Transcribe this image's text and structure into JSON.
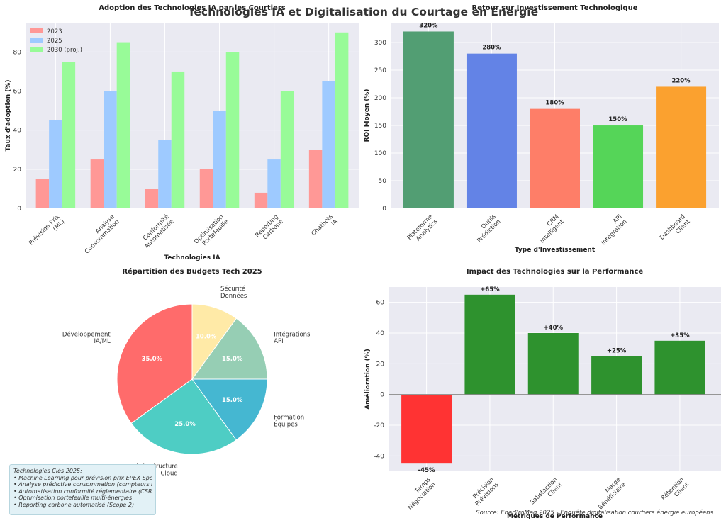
{
  "figure": {
    "title": "Technologies IA et Digitalisation du Courtage en Énergie",
    "source": "Source: EnerProMag 2025 - Enquête digitalisation courtiers énergie européens"
  },
  "notes": {
    "heading": "Technologies Clés 2025:",
    "items": [
      "• Machine Learning pour prévision prix EPEX Spot",
      "• Analyse prédictive consommation (compteurs Linky)",
      "• Automatisation conformité réglementaire (CSRD, EED)",
      "• Optimisation portefeuille multi-énergies",
      "• Reporting carbone automatisé (Scope 2)"
    ]
  },
  "chart_data": [
    {
      "type": "bar",
      "title": "Adoption des Technologies IA par les Courtiers",
      "xlabel": "Technologies IA",
      "ylabel": "Taux d'adoption (%)",
      "categories": [
        "Prévision Prix\n(ML)",
        "Analyse\nConsommation",
        "Conformité\nAutomatisée",
        "Optimisation\nPortefeuille",
        "Reporting\nCarbone",
        "Chatbots\nIA"
      ],
      "series": [
        {
          "name": "2023",
          "values": [
            15,
            25,
            10,
            20,
            8,
            30
          ],
          "color": "#ff9896"
        },
        {
          "name": "2025",
          "values": [
            45,
            60,
            35,
            50,
            25,
            65
          ],
          "color": "#9ecaff"
        },
        {
          "name": "2030 (proj.)",
          "values": [
            75,
            85,
            70,
            80,
            60,
            90
          ],
          "color": "#98fb98"
        }
      ],
      "ylim": [
        0,
        95
      ],
      "yticks": [
        0,
        20,
        40,
        60,
        80
      ],
      "legend": "top-left"
    },
    {
      "type": "bar",
      "title": "Retour sur Investissement Technologique",
      "xlabel": "Type d'Investissement",
      "ylabel": "ROI Moyen (%)",
      "categories": [
        "Plateforme\nAnalytics",
        "Outils\nPrédiction",
        "CRM\nIntelligent",
        "API\nIntégration",
        "Dashboard\nClient"
      ],
      "values": [
        320,
        280,
        180,
        150,
        220
      ],
      "labels": [
        "320%",
        "280%",
        "180%",
        "150%",
        "220%"
      ],
      "colors": [
        "#529e73",
        "#6383e6",
        "#fe7e68",
        "#55d558",
        "#fba12f"
      ],
      "ylim": [
        0,
        336
      ],
      "yticks": [
        0,
        50,
        100,
        150,
        200,
        250,
        300
      ]
    },
    {
      "type": "pie",
      "title": "Répartition des Budgets Tech 2025",
      "labels": [
        "Développement\nIA/ML",
        "Infrastructure\nCloud",
        "Formation\nÉquipes",
        "Intégrations\nAPI",
        "Sécurité\nDonnées"
      ],
      "values": [
        35,
        25,
        15,
        15,
        10
      ],
      "pct_labels": [
        "35.0%",
        "25.0%",
        "15.0%",
        "15.0%",
        "10.0%"
      ],
      "colors": [
        "#ff6b6b",
        "#4ecdc4",
        "#45b7d1",
        "#96ceb4",
        "#ffeaa7"
      ],
      "start_angle": 90
    },
    {
      "type": "bar",
      "title": "Impact des Technologies sur la Performance",
      "xlabel": "Métriques de Performance",
      "ylabel": "Amélioration (%)",
      "categories": [
        "Temps\nNégociation",
        "Précision\nPrévisions",
        "Satisfaction\nClient",
        "Marge\nBénéficiaire",
        "Rétention\nClient"
      ],
      "values": [
        -45,
        65,
        40,
        25,
        35
      ],
      "labels": [
        "-45%",
        "+65%",
        "+40%",
        "+25%",
        "+35%"
      ],
      "colors": [
        "#ff3333",
        "#2e922e",
        "#2e922e",
        "#2e922e",
        "#2e922e"
      ],
      "ylim": [
        -50,
        70
      ],
      "yticks": [
        -40,
        -20,
        0,
        20,
        40,
        60
      ]
    }
  ]
}
